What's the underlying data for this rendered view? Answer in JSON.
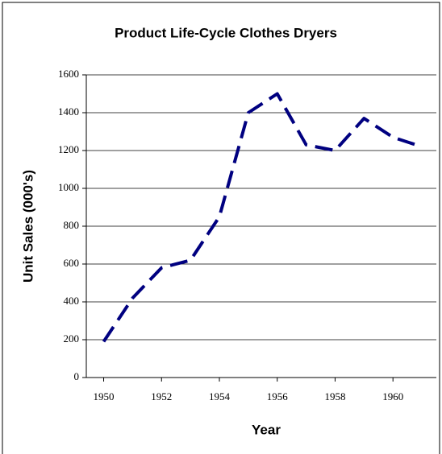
{
  "chart_data": {
    "type": "line",
    "title": "Product Life-Cycle Clothes Dryers",
    "x_label": "Year",
    "y_label": "Unit Sales (000's)",
    "x": [
      1950,
      1951,
      1952,
      1953,
      1954,
      1955,
      1956,
      1957,
      1958,
      1959,
      1960,
      1961
    ],
    "series": [
      {
        "name": "Unit Sales",
        "color": "#000080",
        "values": [
          190,
          420,
          580,
          620,
          850,
          1400,
          1500,
          1230,
          1200,
          1370,
          1270,
          1220
        ]
      }
    ],
    "xlim": [
      1949.4,
      1961.5
    ],
    "xticks": [
      1950,
      1952,
      1954,
      1956,
      1958,
      1960
    ],
    "ylim": [
      0,
      1600
    ],
    "yticks": [
      0,
      200,
      400,
      600,
      800,
      1000,
      1200,
      1400,
      1600
    ],
    "grid": true
  }
}
